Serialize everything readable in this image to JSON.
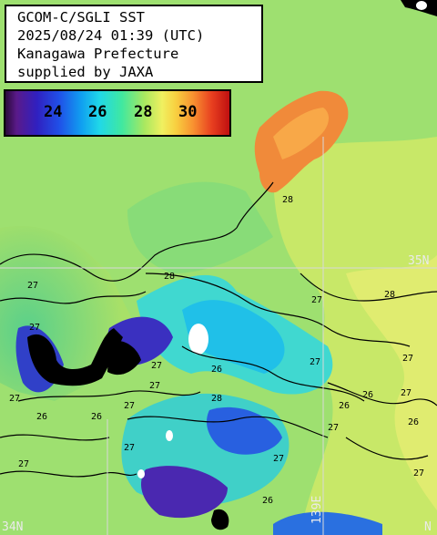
{
  "title": {
    "lines": [
      "GCOM-C/SGLI SST",
      "2025/08/24 01:39 (UTC)",
      "Kanagawa Prefecture",
      "supplied by JAXA"
    ]
  },
  "legend": {
    "ticks": [
      "24",
      "26",
      "28",
      "30"
    ]
  },
  "graticule": {
    "lat_35": "35N",
    "lat_34": "34N",
    "lon_139": "139E",
    "lon_right": "N"
  },
  "contours": {
    "labels": [
      "27",
      "27",
      "27",
      "26",
      "26",
      "27",
      "28",
      "28",
      "27",
      "28",
      "27",
      "27",
      "27",
      "26",
      "26",
      "27",
      "27",
      "26",
      "26",
      "27",
      "27",
      "26",
      "27",
      "27",
      "28",
      "27"
    ]
  },
  "colors": {
    "land": "#000000",
    "cloud": "#ffffff",
    "warm": "#f08a3a",
    "mid": "#7ed86a",
    "cool": "#28c8e0",
    "cold": "#3040c8",
    "coldest": "#5a1a8a"
  }
}
